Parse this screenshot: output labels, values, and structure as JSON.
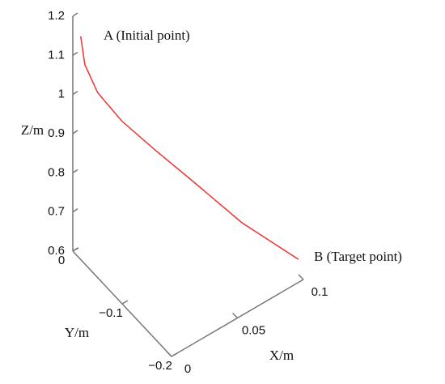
{
  "chart_data": {
    "type": "line3d",
    "annotations": [
      "A (Initial point)",
      "B (Target point)"
    ],
    "xlabel": "X/m",
    "ylabel": "Y/m",
    "zlabel": "Z/m",
    "series": [
      {
        "color": "#ee3333",
        "x": [
          0,
          0.002,
          0.008,
          0.019,
          0.034,
          0.052,
          0.074,
          0.1
        ],
        "y": [
          -0.016,
          -0.019,
          -0.029,
          -0.048,
          -0.074,
          -0.106,
          -0.145,
          -0.19
        ],
        "z": [
          1.17,
          1.098,
          1.028,
          0.96,
          0.893,
          0.817,
          0.722,
          0.638
        ]
      }
    ],
    "xlim": [
      0,
      0.1
    ],
    "xticks": [
      0,
      0.05,
      0.1
    ],
    "ylim": [
      -0.2,
      0
    ],
    "yticks": [
      0,
      {
        "value": -0.1,
        "label": "−0.1"
      },
      {
        "value": -0.2,
        "label": "−0.2"
      }
    ],
    "zlim": [
      0.6,
      1.2
    ],
    "zticks": [
      0.6,
      0.7,
      0.8,
      0.9,
      1,
      1.1,
      1.2
    ]
  }
}
